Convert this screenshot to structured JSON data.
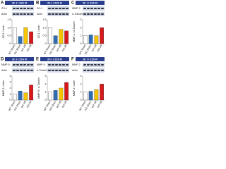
{
  "chart_data": [
    {
      "type": "bar",
      "panel": "A",
      "header": "2h I / 22h R",
      "blot_labels": [
        "ZO-1",
        "Actin"
      ],
      "ylabel": "ZO-1 / Actin",
      "categories": [
        "WT Sham",
        "KO Sham",
        "WT I/R",
        "KO I/R"
      ],
      "colors": [
        "#ffffff",
        "#2e6db4",
        "#f5c400",
        "#d7191c"
      ],
      "values": [
        1.0,
        0.45,
        1.0,
        0.75
      ],
      "ylim": [
        0,
        1.5
      ],
      "yticks": [
        0,
        {
          "value": 0.5,
          "label": "0.5"
        },
        {
          "value": 1,
          "label": "1.0"
        },
        {
          "value": 1.5,
          "label": "1.5"
        }
      ]
    },
    {
      "type": "bar",
      "panel": "B",
      "header": "2h I / 22h R",
      "blot_labels": [
        "ZO-1",
        "Actin"
      ],
      "ylabel": "ZO-1 / Actin",
      "categories": [
        "WT Sham",
        "KO Sham",
        "WT I/R",
        "KO I/R"
      ],
      "colors": [
        "#ffffff",
        "#2e6db4",
        "#f5c400",
        "#d7191c"
      ],
      "values": [
        1.0,
        0.5,
        0.9,
        0.8
      ],
      "ylim": [
        0,
        1.5
      ],
      "yticks": [
        0,
        {
          "value": 0.5,
          "label": "0.5"
        },
        {
          "value": 1,
          "label": "1.0"
        },
        {
          "value": 1.5,
          "label": "1.5"
        }
      ]
    },
    {
      "type": "bar",
      "panel": "C",
      "header": "2h I / 22h R",
      "blot_labels": [
        "MMP-2",
        "α-Tubulin"
      ],
      "ylabel": "MMP-2 / α-Tubulin",
      "categories": [
        "WT Sham",
        "KO Sham",
        "WT I/R",
        "KO I/R"
      ],
      "colors": [
        "#ffffff",
        "#2e6db4",
        "#f5c400",
        "#d7191c"
      ],
      "values": [
        1.0,
        1.1,
        1.0,
        2.0
      ],
      "ylim": [
        0,
        3
      ],
      "yticks": [
        0,
        1,
        2,
        3
      ]
    },
    {
      "type": "bar",
      "panel": "D",
      "header": "2h I / 22h R",
      "blot_labels": [
        "MMP-9",
        "Actin"
      ],
      "ylabel": "MMP-9 / Actin",
      "categories": [
        "WT Sham",
        "KO Sham",
        "WT I/R",
        "KO I/R"
      ],
      "colors": [
        "#ffffff",
        "#2e6db4",
        "#f5c400",
        "#d7191c"
      ],
      "values": [
        1.0,
        1.5,
        1.2,
        2.5
      ],
      "ylim": [
        0,
        4
      ],
      "yticks": [
        0,
        1,
        2,
        3,
        4
      ]
    },
    {
      "type": "bar",
      "panel": "E",
      "header": "2h I / 22h R",
      "blot_labels": [
        "MMP-9",
        "α-Tubulin"
      ],
      "ylabel": "MMP-9 / α-Tubulin",
      "categories": [
        "WT Sham",
        "KO Sham",
        "WT I/R",
        "KO I/R"
      ],
      "colors": [
        "#ffffff",
        "#2e6db4",
        "#f5c400",
        "#d7191c"
      ],
      "values": [
        1.0,
        1.2,
        1.5,
        2.2
      ],
      "ylim": [
        0,
        3
      ],
      "yticks": [
        0,
        1,
        2,
        3
      ]
    },
    {
      "type": "bar",
      "panel": "F",
      "header": "2h I / 22h R",
      "blot_labels": [
        "MMP-2",
        "Actin"
      ],
      "ylabel": "MMP-2 / Actin",
      "categories": [
        "WT Sham",
        "KO Sham",
        "WT I/R",
        "KO I/R"
      ],
      "colors": [
        "#ffffff",
        "#2e6db4",
        "#f5c400",
        "#d7191c"
      ],
      "values": [
        1.0,
        1.1,
        1.3,
        2.0
      ],
      "ylim": [
        0,
        3
      ],
      "yticks": [
        0,
        1,
        2,
        3
      ]
    }
  ]
}
